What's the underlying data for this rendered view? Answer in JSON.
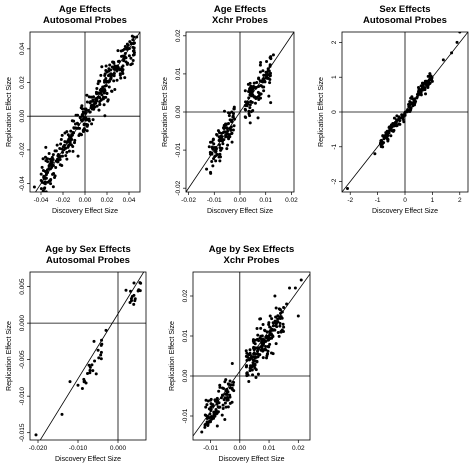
{
  "chart_data": [
    {
      "type": "scatter",
      "title": "Age Effects",
      "subtitle": "Autosomal Probes",
      "xlabel": "Discovery Effect Size",
      "ylabel": "Replication Effect Size",
      "xlim": [
        -0.05,
        0.05
      ],
      "ylim": [
        -0.045,
        0.05
      ],
      "xticks": [
        -0.04,
        -0.02,
        0.0,
        0.02,
        0.04
      ],
      "xtick_labels": [
        "-0.04",
        "-0.02",
        "0.00",
        "0.02",
        "0.04"
      ],
      "yticks": [
        -0.04,
        -0.02,
        0.0,
        0.02,
        0.04
      ],
      "ytick_labels": [
        "-0.04",
        "-0.02",
        "0.00",
        "0.02",
        "0.04"
      ],
      "ref_lines": {
        "x": 0,
        "y": 0
      },
      "fit_line": [
        [
          -0.05,
          -0.05
        ],
        [
          0.05,
          0.05
        ]
      ],
      "point_groups": [
        {
          "x": [
            -0.04,
            0.0
          ],
          "slope": 0.98,
          "noise": 0.005,
          "count": 160
        },
        {
          "x": [
            0.0,
            0.045
          ],
          "slope": 0.95,
          "noise": 0.005,
          "count": 200
        }
      ],
      "points": [
        [
          -0.046,
          -0.042
        ],
        [
          -0.035,
          -0.034
        ],
        [
          -0.03,
          -0.029
        ],
        [
          0.042,
          0.043
        ],
        [
          0.047,
          0.047
        ]
      ]
    },
    {
      "type": "scatter",
      "title": "Age Effects",
      "subtitle": "Xchr Probes",
      "xlabel": "Discovery Effect Size",
      "ylabel": "Replication Effect Size",
      "xlim": [
        -0.021,
        0.021
      ],
      "ylim": [
        -0.021,
        0.021
      ],
      "xticks": [
        -0.02,
        -0.01,
        0.0,
        0.01,
        0.02
      ],
      "xtick_labels": [
        "-0.02",
        "-0.01",
        "0.00",
        "0.01",
        "0.02"
      ],
      "yticks": [
        -0.02,
        -0.01,
        0.0,
        0.01,
        0.02
      ],
      "ytick_labels": [
        "-0.02",
        "-0.01",
        "0.00",
        "0.01",
        "0.02"
      ],
      "ref_lines": {
        "x": 0,
        "y": 0
      },
      "fit_line": [
        [
          -0.021,
          -0.021
        ],
        [
          0.021,
          0.021
        ]
      ],
      "point_groups": [
        {
          "x": [
            -0.012,
            -0.002
          ],
          "slope": 0.95,
          "noise": 0.0025,
          "count": 110
        },
        {
          "x": [
            0.002,
            0.012
          ],
          "slope": 0.95,
          "noise": 0.0025,
          "count": 110
        }
      ],
      "points": [
        [
          -0.013,
          -0.015
        ],
        [
          -0.011,
          -0.013
        ],
        [
          0.012,
          0.014
        ],
        [
          0.013,
          0.015
        ],
        [
          0.008,
          0.013
        ]
      ]
    },
    {
      "type": "scatter",
      "title": "Sex Effects",
      "subtitle": "Autosomal Probes",
      "xlabel": "Discovery Effect Size",
      "ylabel": "Replication Effect Size",
      "xlim": [
        -2.3,
        2.3
      ],
      "ylim": [
        -2.3,
        2.3
      ],
      "xticks": [
        -2,
        -1,
        0,
        1,
        2
      ],
      "xtick_labels": [
        "-2",
        "-1",
        "0",
        "1",
        "2"
      ],
      "yticks": [
        -2,
        -1,
        0,
        1,
        2
      ],
      "ytick_labels": [
        "-2",
        "-1",
        "0",
        "1",
        "2"
      ],
      "ref_lines": {
        "x": 0,
        "y": 0
      },
      "fit_line": [
        [
          -2.3,
          -2.3
        ],
        [
          2.3,
          2.3
        ]
      ],
      "point_groups": [
        {
          "x": [
            -0.9,
            0.0
          ],
          "slope": 1.0,
          "noise": 0.1,
          "count": 80
        },
        {
          "x": [
            0.0,
            1.0
          ],
          "slope": 1.0,
          "noise": 0.1,
          "count": 90
        }
      ],
      "points": [
        [
          -2.1,
          -2.2
        ],
        [
          -1.1,
          -1.2
        ],
        [
          1.4,
          1.5
        ],
        [
          1.7,
          1.7
        ],
        [
          1.9,
          2.0
        ],
        [
          2.0,
          2.3
        ]
      ]
    },
    {
      "type": "scatter",
      "title": "Age by Sex Effects",
      "subtitle": "Autosomal Probes",
      "xlabel": "Discovery Effect Size",
      "ylabel": "Replication Effect Size",
      "xlim": [
        -0.022,
        0.007
      ],
      "ylim": [
        -0.016,
        0.007
      ],
      "xticks": [
        -0.02,
        -0.01,
        0.0
      ],
      "xtick_labels": [
        "-0.020",
        "-0.010",
        "0.000"
      ],
      "yticks": [
        -0.015,
        -0.01,
        -0.005,
        0.0,
        0.005
      ],
      "ytick_labels": [
        "-0.015",
        "-0.010",
        "-0.005",
        "0.000",
        "0.005"
      ],
      "ref_lines": {
        "x": 0,
        "y": 0
      },
      "fit_line": [
        [
          -0.02,
          -0.0165
        ],
        [
          0.007,
          0.0075
        ]
      ],
      "point_groups": [
        {
          "x": [
            0.003,
            0.006
          ],
          "slope": 0.9,
          "noise": 0.0006,
          "count": 14
        },
        {
          "x": [
            -0.009,
            -0.004
          ],
          "slope": 0.9,
          "noise": 0.0008,
          "count": 22
        }
      ],
      "points": [
        [
          -0.0205,
          -0.0153
        ],
        [
          -0.014,
          -0.0125
        ],
        [
          -0.012,
          -0.008
        ],
        [
          -0.01,
          -0.0085
        ],
        [
          -0.006,
          -0.0025
        ],
        [
          -0.003,
          -0.001
        ],
        [
          0.004,
          0.0055
        ],
        [
          0.002,
          0.0045
        ]
      ]
    },
    {
      "type": "scatter",
      "title": "Age by Sex Effects",
      "subtitle": "Xchr Probes",
      "xlabel": "Discovery Effect Size",
      "ylabel": "Replication Effect Size",
      "xlim": [
        -0.016,
        0.024
      ],
      "ylim": [
        -0.016,
        0.026
      ],
      "xticks": [
        -0.01,
        0.0,
        0.01,
        0.02
      ],
      "xtick_labels": [
        "-0.01",
        "0.00",
        "0.01",
        "0.02"
      ],
      "yticks": [
        -0.01,
        0.0,
        0.01,
        0.02
      ],
      "ytick_labels": [
        "-0.01",
        "0.00",
        "0.01",
        "0.02"
      ],
      "ref_lines": {
        "x": 0,
        "y": 0
      },
      "fit_line": [
        [
          -0.016,
          -0.015
        ],
        [
          0.024,
          0.0255
        ]
      ],
      "point_groups": [
        {
          "x": [
            -0.012,
            -0.002
          ],
          "slope": 0.95,
          "noise": 0.0018,
          "count": 110
        },
        {
          "x": [
            0.002,
            0.015
          ],
          "slope": 1.0,
          "noise": 0.0022,
          "count": 180
        }
      ],
      "points": [
        [
          -0.013,
          -0.014
        ],
        [
          0.017,
          0.022
        ],
        [
          0.019,
          0.022
        ],
        [
          0.021,
          0.024
        ],
        [
          0.012,
          0.02
        ],
        [
          0.016,
          0.018
        ],
        [
          0.02,
          0.015
        ]
      ]
    }
  ]
}
